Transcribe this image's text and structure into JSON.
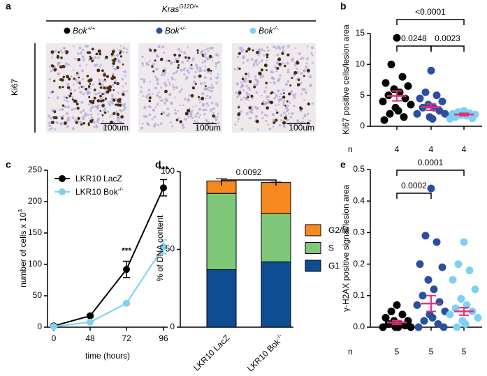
{
  "panel_a": {
    "label": "a",
    "title": "Kras",
    "title_sup": "G12D/+",
    "genotypes": [
      {
        "name": "Bok",
        "sup": "+/+",
        "color": "#000000"
      },
      {
        "name": "Bok",
        "sup": "+/-",
        "color": "#2b4f9e"
      },
      {
        "name": "Bok",
        "sup": "-/-",
        "color": "#7fd0f2"
      }
    ],
    "stain": "Ki67",
    "scale_bars": [
      "100um",
      "100um",
      "100um"
    ]
  },
  "chart_data": [
    {
      "type": "dot",
      "label": "b",
      "ylabel": "Ki67 positive cells/lesion area",
      "ylim": [
        0,
        15
      ],
      "yticks": [
        0,
        5,
        10,
        15
      ],
      "n_label": "n",
      "mean_color": "#e0307a",
      "groups": [
        {
          "color": "#000000",
          "n": 4,
          "values": [
            14.3,
            10,
            8,
            7,
            6.5,
            6,
            5.5,
            5,
            4.5,
            4,
            3.5,
            3,
            2.5,
            2,
            1.5,
            1
          ],
          "mean": 4.9,
          "sem": 0.8
        },
        {
          "color": "#2b4f9e",
          "n": 4,
          "values": [
            9,
            5.5,
            5,
            4.5,
            4,
            3.5,
            3,
            3,
            2.5,
            2,
            2,
            1.5,
            1.2
          ],
          "mean": 3.1,
          "sem": 0.5
        },
        {
          "color": "#7fd0f2",
          "n": 4,
          "values": [
            2.5,
            2.3,
            2.1,
            2,
            1.9,
            1.8,
            1.7,
            1.5,
            1.3,
            1.2
          ],
          "mean": 1.9,
          "sem": 0.2
        }
      ],
      "comparisons": [
        "0.0248",
        "0.0023",
        "<0.0001"
      ]
    },
    {
      "type": "line",
      "label": "c",
      "xlabel": "time (hours)",
      "ylabel": "number of cells x 10",
      "ylabel_sup": "3",
      "categories": [
        "0",
        "48",
        "72",
        "96"
      ],
      "ylim": [
        0,
        250
      ],
      "yticks": [
        0,
        50,
        100,
        150,
        200,
        250
      ],
      "series": [
        {
          "name": "LKR10 LacZ",
          "color": "#000000",
          "values": [
            2,
            18,
            92,
            222
          ],
          "errors": [
            1,
            2,
            13,
            13
          ]
        },
        {
          "name": "LKR10 Bok",
          "name_sup": "-/-",
          "color": "#7fd0f2",
          "values": [
            1,
            8,
            38,
            128
          ],
          "errors": [
            0.5,
            1,
            2,
            11
          ]
        }
      ],
      "annotations": [
        "***",
        "***"
      ]
    },
    {
      "type": "stacked_bar",
      "label": "d",
      "ylabel": "% of DNA content",
      "categories": [
        "LKR10 LacZ",
        "LKR10 Bok"
      ],
      "category_sups": [
        null,
        "-/-"
      ],
      "ylim": [
        0,
        100
      ],
      "yticks": [
        0,
        50,
        100
      ],
      "series": [
        {
          "name": "G1",
          "color": "#0e4d92",
          "values": [
            37,
            42
          ],
          "errors": [
            1,
            0.5
          ]
        },
        {
          "name": "S",
          "color": "#7fc87a",
          "values": [
            49,
            31
          ],
          "errors": [
            0.5,
            0.5
          ]
        },
        {
          "name": "G2/M",
          "color": "#f5891f",
          "values": [
            8,
            20
          ],
          "errors": [
            1.5,
            0.3
          ]
        }
      ],
      "comparisons": [
        "0.0092"
      ]
    },
    {
      "type": "dot",
      "label": "e",
      "ylabel": "γ-H2AX positive signal/lesion area",
      "ylim": [
        0,
        0.5
      ],
      "yticks": [
        {
          "value": 0,
          "label": "0.0"
        },
        {
          "value": 0.1,
          "label": "0.1"
        },
        {
          "value": 0.2,
          "label": "0.2"
        },
        {
          "value": 0.3,
          "label": "0.3"
        },
        {
          "value": 0.4,
          "label": "0.4"
        },
        {
          "value": 0.5,
          "label": "0.5"
        }
      ],
      "n_label": "n",
      "mean_color": "#e0307a",
      "groups": [
        {
          "color": "#000000",
          "n": 5,
          "values": [
            0.07,
            0.05,
            0.04,
            0.03,
            0.02,
            0.02,
            0.01,
            0.01,
            0.005,
            0,
            0,
            0,
            0
          ],
          "mean": 0.015,
          "sem": 0.006
        },
        {
          "color": "#2b4f9e",
          "n": 5,
          "values": [
            0.44,
            0.29,
            0.27,
            0.2,
            0.19,
            0.15,
            0.12,
            0.1,
            0.08,
            0.07,
            0.05,
            0.04,
            0.03,
            0.02,
            0.01,
            0,
            0
          ],
          "mean": 0.075,
          "sem": 0.025
        },
        {
          "color": "#7fd0f2",
          "n": 5,
          "values": [
            0.27,
            0.2,
            0.18,
            0.15,
            0.12,
            0.09,
            0.07,
            0.06,
            0.05,
            0.04,
            0.03,
            0.02,
            0.01,
            0
          ],
          "mean": 0.05,
          "sem": 0.012
        }
      ],
      "comparisons": [
        "0.0002",
        "0.0001"
      ]
    }
  ]
}
